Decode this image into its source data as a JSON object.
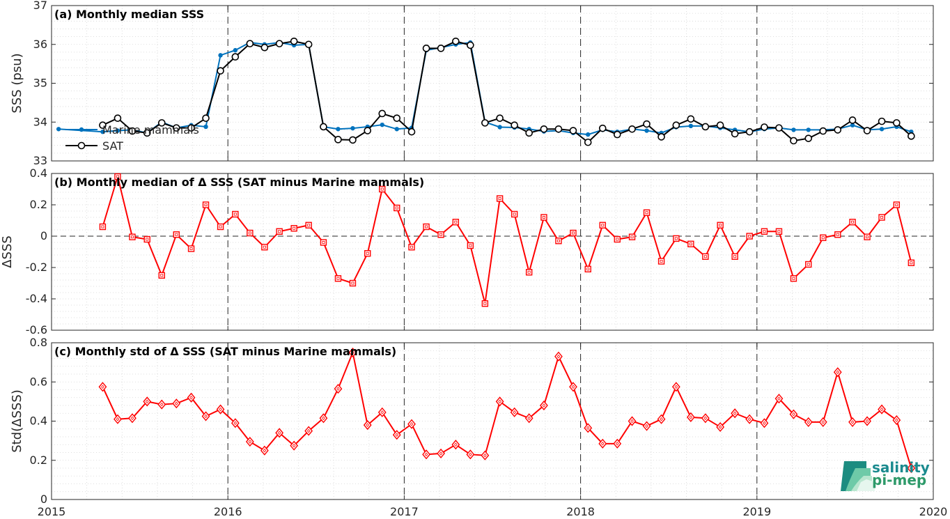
{
  "chart_data": [
    {
      "type": "line",
      "title": "(a) Monthly median SSS",
      "ylabel": "SSS (psu)",
      "xlim": [
        2015,
        2020
      ],
      "ylim": [
        33,
        37
      ],
      "yticks": [
        "33",
        "34",
        "35",
        "36",
        "37"
      ],
      "grid": "dotted",
      "legend_position": "lower-left",
      "series": [
        {
          "name": "Marine mammals",
          "color": "#0072BD",
          "marker": "dot",
          "x": [
            2015.04,
            2015.29,
            2015.375,
            2015.458,
            2015.542,
            2015.625,
            2015.708,
            2015.792,
            2015.875,
            2015.958,
            2016.042,
            2016.125,
            2016.208,
            2016.292,
            2016.375,
            2016.458,
            2016.542,
            2016.625,
            2016.708,
            2016.792,
            2016.875,
            2016.958,
            2017.042,
            2017.125,
            2017.208,
            2017.292,
            2017.375,
            2017.458,
            2017.542,
            2017.625,
            2017.708,
            2017.792,
            2017.875,
            2017.958,
            2018.042,
            2018.125,
            2018.208,
            2018.292,
            2018.375,
            2018.458,
            2018.542,
            2018.625,
            2018.708,
            2018.792,
            2018.875,
            2018.958,
            2019.042,
            2019.125,
            2019.208,
            2019.292,
            2019.375,
            2019.458,
            2019.542,
            2019.625,
            2019.708,
            2019.792,
            2019.875
          ],
          "y": [
            33.82,
            33.75,
            33.78,
            33.8,
            33.72,
            34.0,
            33.85,
            33.92,
            33.88,
            35.72,
            35.85,
            36.05,
            36.0,
            36.05,
            35.98,
            36.0,
            33.88,
            33.82,
            33.84,
            33.88,
            33.93,
            33.82,
            33.85,
            35.85,
            35.92,
            36.0,
            36.05,
            34.0,
            33.87,
            33.86,
            33.82,
            33.76,
            33.78,
            33.72,
            33.68,
            33.8,
            33.75,
            33.82,
            33.78,
            33.72,
            33.87,
            33.9,
            33.9,
            33.85,
            33.8,
            33.75,
            33.82,
            33.85,
            33.8,
            33.8,
            33.8,
            33.82,
            33.92,
            33.8,
            33.82,
            33.88,
            33.75
          ]
        },
        {
          "name": "SAT",
          "color": "#000000",
          "marker": "circle",
          "x": [
            2015.29,
            2015.375,
            2015.458,
            2015.542,
            2015.625,
            2015.708,
            2015.792,
            2015.875,
            2015.958,
            2016.042,
            2016.125,
            2016.208,
            2016.292,
            2016.375,
            2016.458,
            2016.542,
            2016.625,
            2016.708,
            2016.792,
            2016.875,
            2016.958,
            2017.042,
            2017.125,
            2017.208,
            2017.292,
            2017.375,
            2017.458,
            2017.542,
            2017.625,
            2017.708,
            2017.792,
            2017.875,
            2017.958,
            2018.042,
            2018.125,
            2018.208,
            2018.292,
            2018.375,
            2018.458,
            2018.542,
            2018.625,
            2018.708,
            2018.792,
            2018.875,
            2018.958,
            2019.042,
            2019.125,
            2019.208,
            2019.292,
            2019.375,
            2019.458,
            2019.542,
            2019.625,
            2019.708,
            2019.792,
            2019.875
          ],
          "y": [
            33.92,
            34.1,
            33.77,
            33.72,
            33.98,
            33.85,
            33.85,
            34.1,
            35.32,
            35.68,
            36.02,
            35.92,
            36.02,
            36.08,
            36.0,
            33.88,
            33.55,
            33.54,
            33.78,
            34.22,
            34.1,
            33.75,
            35.9,
            35.9,
            36.08,
            35.98,
            33.98,
            34.1,
            33.92,
            33.72,
            33.82,
            33.82,
            33.78,
            33.48,
            33.84,
            33.68,
            33.82,
            33.95,
            33.62,
            33.92,
            34.08,
            33.88,
            33.92,
            33.7,
            33.75,
            33.87,
            33.85,
            33.52,
            33.58,
            33.77,
            33.8,
            34.05,
            33.78,
            34.02,
            33.98,
            33.64
          ]
        }
      ]
    },
    {
      "type": "line",
      "title": "(b) Monthly median of Δ SSS (SAT minus Marine mammals)",
      "ylabel": "ΔSSS",
      "xlim": [
        2015,
        2020
      ],
      "ylim": [
        -0.6,
        0.4
      ],
      "yticks": [
        "-0.6",
        "-0.4",
        "-0.2",
        "0",
        "0.2",
        "0.4"
      ],
      "zero_line": "dashed",
      "series": [
        {
          "color": "#FF0000",
          "marker": "square",
          "x": [
            2015.29,
            2015.375,
            2015.458,
            2015.542,
            2015.625,
            2015.708,
            2015.792,
            2015.875,
            2015.958,
            2016.042,
            2016.125,
            2016.208,
            2016.292,
            2016.375,
            2016.458,
            2016.542,
            2016.625,
            2016.708,
            2016.792,
            2016.875,
            2016.958,
            2017.042,
            2017.125,
            2017.208,
            2017.292,
            2017.375,
            2017.458,
            2017.542,
            2017.625,
            2017.708,
            2017.792,
            2017.875,
            2017.958,
            2018.042,
            2018.125,
            2018.208,
            2018.292,
            2018.375,
            2018.458,
            2018.542,
            2018.625,
            2018.708,
            2018.792,
            2018.875,
            2018.958,
            2019.042,
            2019.125,
            2019.208,
            2019.292,
            2019.375,
            2019.458,
            2019.542,
            2019.625,
            2019.708,
            2019.792,
            2019.875
          ],
          "y": [
            0.06,
            0.38,
            -0.005,
            -0.02,
            -0.25,
            0.01,
            -0.08,
            0.2,
            0.06,
            0.14,
            0.02,
            -0.07,
            0.03,
            0.05,
            0.07,
            -0.04,
            -0.27,
            -0.3,
            -0.11,
            0.3,
            0.18,
            -0.07,
            0.06,
            0.01,
            0.09,
            -0.06,
            -0.43,
            0.24,
            0.14,
            -0.23,
            0.12,
            -0.03,
            0.02,
            -0.21,
            0.07,
            -0.02,
            -0.005,
            0.15,
            -0.16,
            -0.015,
            -0.05,
            -0.13,
            0.07,
            -0.13,
            0.0,
            0.03,
            0.03,
            -0.27,
            -0.18,
            -0.01,
            0.01,
            0.09,
            -0.005,
            0.12,
            0.2,
            -0.17
          ]
        }
      ]
    },
    {
      "type": "line",
      "title": "(c) Monthly std of Δ SSS (SAT minus Marine mammals)",
      "ylabel": "Std(ΔSSS)",
      "xlim": [
        2015,
        2020
      ],
      "ylim": [
        0,
        0.8
      ],
      "yticks": [
        "0",
        "0.2",
        "0.4",
        "0.6",
        "0.8"
      ],
      "series": [
        {
          "color": "#FF0000",
          "marker": "diamond",
          "x": [
            2015.29,
            2015.375,
            2015.458,
            2015.542,
            2015.625,
            2015.708,
            2015.792,
            2015.875,
            2015.958,
            2016.042,
            2016.125,
            2016.208,
            2016.292,
            2016.375,
            2016.458,
            2016.542,
            2016.625,
            2016.708,
            2016.792,
            2016.875,
            2016.958,
            2017.042,
            2017.125,
            2017.208,
            2017.292,
            2017.375,
            2017.458,
            2017.542,
            2017.625,
            2017.708,
            2017.792,
            2017.875,
            2017.958,
            2018.042,
            2018.125,
            2018.208,
            2018.292,
            2018.375,
            2018.458,
            2018.542,
            2018.625,
            2018.708,
            2018.792,
            2018.875,
            2018.958,
            2019.042,
            2019.125,
            2019.208,
            2019.292,
            2019.375,
            2019.458,
            2019.542,
            2019.625,
            2019.708,
            2019.792,
            2019.875
          ],
          "y": [
            0.575,
            0.41,
            0.415,
            0.5,
            0.485,
            0.49,
            0.52,
            0.425,
            0.46,
            0.39,
            0.295,
            0.25,
            0.34,
            0.275,
            0.35,
            0.415,
            0.565,
            0.75,
            0.38,
            0.445,
            0.33,
            0.385,
            0.23,
            0.235,
            0.28,
            0.23,
            0.225,
            0.5,
            0.445,
            0.415,
            0.48,
            0.73,
            0.575,
            0.365,
            0.285,
            0.285,
            0.4,
            0.375,
            0.41,
            0.575,
            0.42,
            0.415,
            0.37,
            0.44,
            0.41,
            0.39,
            0.515,
            0.435,
            0.395,
            0.395,
            0.65,
            0.395,
            0.4,
            0.46,
            0.405,
            0.16
          ]
        }
      ]
    }
  ],
  "x_ticks": [
    "2015",
    "2016",
    "2017",
    "2018",
    "2019",
    "2020"
  ],
  "logo": {
    "line1": "salinity",
    "line2": "pi-mep"
  }
}
